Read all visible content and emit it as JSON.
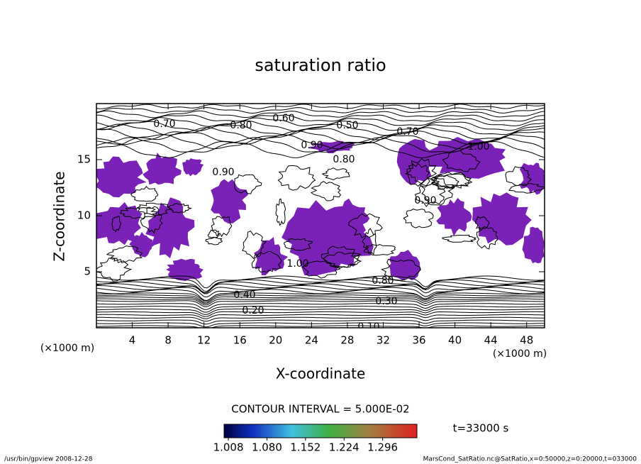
{
  "chart_data": {
    "type": "contour",
    "title": "saturation ratio",
    "x_label": "X-coordinate",
    "y_label": "Z-coordinate",
    "x_unit": "(×1000 m)",
    "y_unit": "(×1000 m)",
    "xlim": [
      0,
      50
    ],
    "ylim": [
      0,
      20
    ],
    "xticks": [
      4,
      8,
      12,
      16,
      20,
      24,
      28,
      32,
      36,
      40,
      44,
      48
    ],
    "yticks": [
      5,
      10,
      15
    ],
    "fill_color": "#7a22b8",
    "contour_labels": [
      "0.70",
      "0.80",
      "0.60",
      "0.50",
      "0.70",
      "0.90",
      "0.80",
      "1.00",
      "0.90",
      "0.90",
      "1.00",
      "0.80",
      "0.40",
      "0.20",
      "0.30",
      "0.10"
    ],
    "contour_interval": "CONTOUR INTERVAL = 5.000E-02",
    "colorbar_lim": [
      1.0,
      1.36
    ],
    "colorbar_ticks": [
      1.008,
      {
        "value": 1.08,
        "label": "1.080"
      },
      1.152,
      1.224,
      1.296
    ],
    "time_label": "t=33000 s",
    "footer_left": "/usr/bin/gpview  2008-12-28",
    "footer_right": "MarsCond_SatRatio.nc@SatRatio,x=0:50000,z=0:20000,t=033000"
  }
}
